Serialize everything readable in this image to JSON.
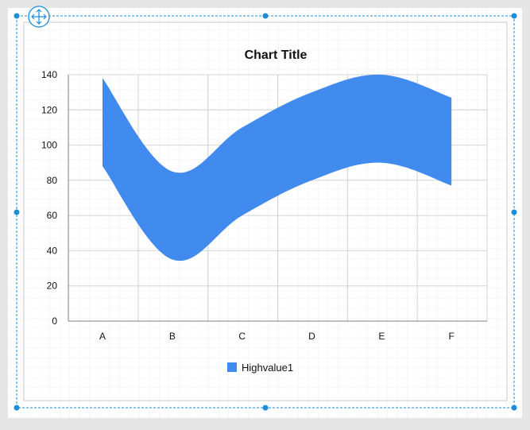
{
  "colors": {
    "series": "#418bef",
    "selection": "#1a8ed8",
    "grid_major": "#d4d4d4",
    "grid_minor": "#eef0f3",
    "axis": "#7f7f7f",
    "text": "#111111"
  },
  "icons": {
    "move_handle": "move-arrows-icon"
  },
  "chart_data": {
    "type": "area",
    "subtype": "range-spline-area",
    "title": "Chart Title",
    "xlabel": "",
    "ylabel": "",
    "categories": [
      "A",
      "B",
      "C",
      "D",
      "E",
      "F"
    ],
    "ylim": [
      0,
      140
    ],
    "yticks": [
      0,
      20,
      40,
      60,
      80,
      100,
      120,
      140
    ],
    "grid": true,
    "legend_position": "bottom",
    "series": [
      {
        "name": "Highvalue1",
        "high": [
          138,
          85,
          110,
          130,
          140,
          127
        ],
        "low": [
          88,
          35,
          60,
          80,
          90,
          77
        ]
      }
    ]
  }
}
